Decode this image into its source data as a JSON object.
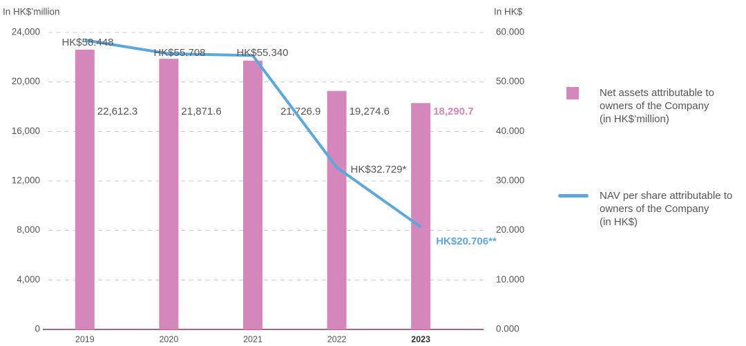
{
  "chart_data": {
    "type": "bar_line",
    "ylabel": "In HK$’million",
    "y2label": "In HK$",
    "categories": [
      "2019",
      "2020",
      "2021",
      "2022",
      "2023"
    ],
    "ylim": [
      0,
      24000
    ],
    "yticks": [
      0,
      {
        "value": 4000,
        "label": "4,000"
      },
      {
        "value": 8000,
        "label": "8,000"
      },
      {
        "value": 12000,
        "label": "12,000"
      },
      {
        "value": 16000,
        "label": "16,000"
      },
      {
        "value": 20000,
        "label": "20,000"
      },
      {
        "value": 24000,
        "label": "24,000"
      }
    ],
    "y2lim": [
      0,
      60
    ],
    "y2ticks": [
      {
        "value": 0,
        "label": "0.000"
      },
      {
        "value": 10,
        "label": "10.000"
      },
      {
        "value": 20,
        "label": "20.000"
      },
      {
        "value": 30,
        "label": "30.000"
      },
      {
        "value": 40,
        "label": "40.000"
      },
      {
        "value": 50,
        "label": "50.000"
      },
      {
        "value": 60,
        "label": "60.000"
      }
    ],
    "grid": true,
    "legend": "right",
    "series": [
      {
        "name": "Net assets attributable to\nowners of the Company\n(in HK$’million)",
        "type": "bar",
        "color": "#d487ba",
        "values": [
          22612.3,
          21871.6,
          21726.9,
          19274.6,
          18290.7
        ],
        "value_labels": [
          "22,612.3",
          "21,871.6",
          "21,726.9",
          "19,274.6",
          "18,290.7"
        ]
      },
      {
        "name": "NAV per share attributable to\nowners of the Company\n(in HK$)",
        "type": "line",
        "axis": "y2",
        "color": "#5ca8dd",
        "values": [
          58.448,
          55.708,
          55.34,
          32.729,
          20.706
        ],
        "value_labels": [
          "HK$58.448",
          "HK$55.708",
          "HK$55.340",
          "HK$32.729*",
          "HK$20.706**"
        ]
      }
    ]
  }
}
